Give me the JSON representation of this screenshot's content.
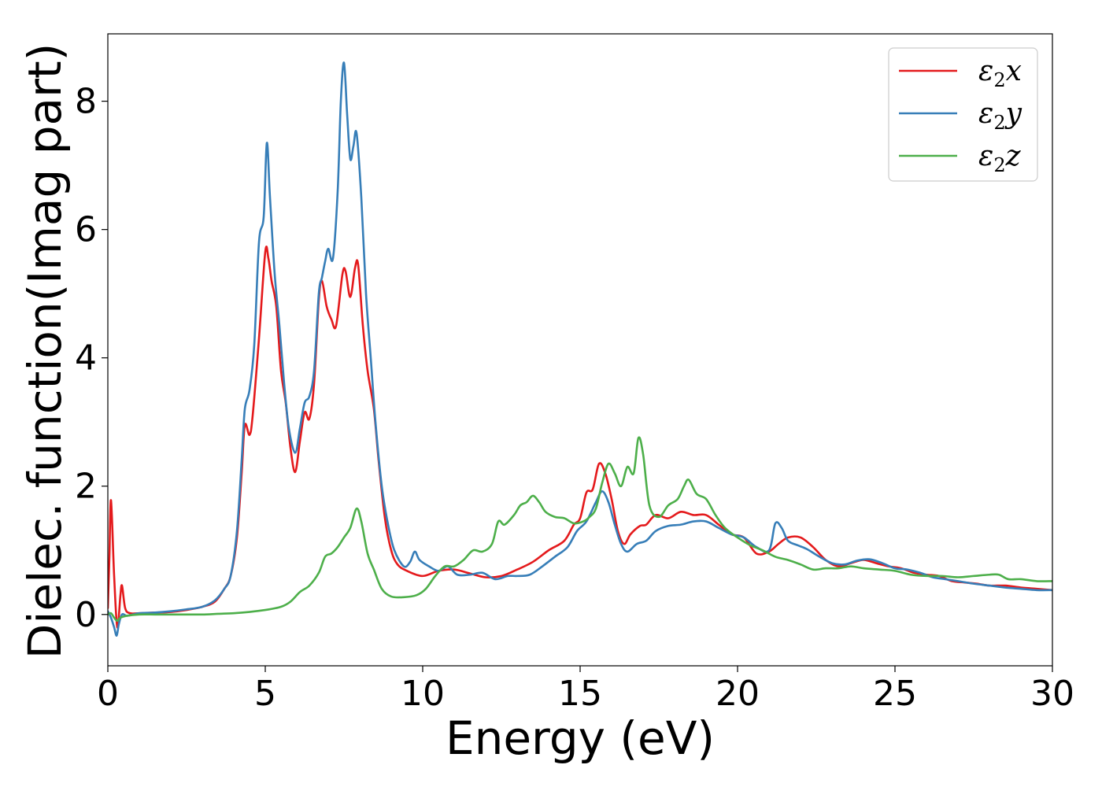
{
  "chart_data": {
    "type": "line",
    "xlabel": "Energy (eV)",
    "ylabel": "Dielec. function(Imag part)",
    "xlim": [
      0,
      30
    ],
    "ylim": [
      -0.8,
      9.05
    ],
    "x_ticks": [
      0,
      5,
      10,
      15,
      20,
      25,
      30
    ],
    "y_ticks": [
      0,
      2,
      4,
      6,
      8
    ],
    "grid": false,
    "legend_position": "top-right",
    "series": [
      {
        "name": "ε2x",
        "legend_base": "ε",
        "legend_sub": "2",
        "legend_suffix": "x",
        "color": "#e41a1c",
        "points": [
          [
            0.0,
            0.1
          ],
          [
            0.05,
            0.9
          ],
          [
            0.1,
            1.78
          ],
          [
            0.2,
            0.6
          ],
          [
            0.3,
            -0.2
          ],
          [
            0.4,
            0.3
          ],
          [
            0.45,
            0.45
          ],
          [
            0.55,
            0.1
          ],
          [
            0.7,
            0.02
          ],
          [
            1.0,
            0.02
          ],
          [
            1.5,
            0.03
          ],
          [
            2.0,
            0.04
          ],
          [
            2.5,
            0.07
          ],
          [
            3.0,
            0.12
          ],
          [
            3.4,
            0.2
          ],
          [
            3.7,
            0.4
          ],
          [
            3.9,
            0.6
          ],
          [
            4.1,
            1.2
          ],
          [
            4.25,
            2.2
          ],
          [
            4.35,
            2.95
          ],
          [
            4.5,
            2.8
          ],
          [
            4.6,
            3.1
          ],
          [
            4.8,
            4.3
          ],
          [
            5.0,
            5.65
          ],
          [
            5.1,
            5.55
          ],
          [
            5.2,
            5.2
          ],
          [
            5.35,
            4.8
          ],
          [
            5.5,
            3.8
          ],
          [
            5.65,
            3.3
          ],
          [
            5.8,
            2.6
          ],
          [
            5.95,
            2.22
          ],
          [
            6.1,
            2.7
          ],
          [
            6.25,
            3.15
          ],
          [
            6.4,
            3.05
          ],
          [
            6.55,
            3.6
          ],
          [
            6.7,
            4.9
          ],
          [
            6.8,
            5.2
          ],
          [
            6.95,
            4.8
          ],
          [
            7.1,
            4.6
          ],
          [
            7.25,
            4.5
          ],
          [
            7.45,
            5.3
          ],
          [
            7.55,
            5.35
          ],
          [
            7.7,
            4.95
          ],
          [
            7.85,
            5.4
          ],
          [
            7.95,
            5.45
          ],
          [
            8.1,
            4.5
          ],
          [
            8.25,
            3.8
          ],
          [
            8.45,
            3.2
          ],
          [
            8.6,
            2.4
          ],
          [
            8.8,
            1.5
          ],
          [
            9.0,
            1.0
          ],
          [
            9.2,
            0.78
          ],
          [
            9.5,
            0.68
          ],
          [
            10.0,
            0.6
          ],
          [
            10.5,
            0.68
          ],
          [
            11.0,
            0.7
          ],
          [
            11.5,
            0.64
          ],
          [
            12.0,
            0.58
          ],
          [
            12.5,
            0.6
          ],
          [
            13.0,
            0.7
          ],
          [
            13.5,
            0.82
          ],
          [
            14.0,
            1.0
          ],
          [
            14.5,
            1.15
          ],
          [
            14.8,
            1.4
          ],
          [
            15.0,
            1.5
          ],
          [
            15.2,
            1.9
          ],
          [
            15.4,
            1.95
          ],
          [
            15.6,
            2.35
          ],
          [
            15.8,
            2.2
          ],
          [
            16.0,
            1.8
          ],
          [
            16.2,
            1.3
          ],
          [
            16.4,
            1.1
          ],
          [
            16.6,
            1.25
          ],
          [
            16.9,
            1.38
          ],
          [
            17.1,
            1.4
          ],
          [
            17.4,
            1.55
          ],
          [
            17.8,
            1.5
          ],
          [
            18.2,
            1.6
          ],
          [
            18.6,
            1.55
          ],
          [
            19.0,
            1.55
          ],
          [
            19.4,
            1.4
          ],
          [
            19.8,
            1.25
          ],
          [
            20.2,
            1.2
          ],
          [
            20.6,
            0.95
          ],
          [
            21.0,
            0.98
          ],
          [
            21.3,
            1.1
          ],
          [
            21.6,
            1.2
          ],
          [
            22.0,
            1.2
          ],
          [
            22.4,
            1.05
          ],
          [
            22.8,
            0.85
          ],
          [
            23.2,
            0.75
          ],
          [
            23.6,
            0.8
          ],
          [
            24.0,
            0.85
          ],
          [
            24.4,
            0.8
          ],
          [
            24.8,
            0.75
          ],
          [
            25.2,
            0.72
          ],
          [
            25.6,
            0.65
          ],
          [
            26.0,
            0.62
          ],
          [
            26.4,
            0.6
          ],
          [
            26.8,
            0.52
          ],
          [
            27.2,
            0.5
          ],
          [
            27.6,
            0.48
          ],
          [
            28.0,
            0.45
          ],
          [
            28.5,
            0.45
          ],
          [
            29.0,
            0.42
          ],
          [
            29.5,
            0.4
          ],
          [
            30.0,
            0.38
          ]
        ]
      },
      {
        "name": "ε2y",
        "legend_base": "ε",
        "legend_sub": "2",
        "legend_suffix": "y",
        "color": "#377eb8",
        "points": [
          [
            0.0,
            0.05
          ],
          [
            0.1,
            -0.05
          ],
          [
            0.2,
            -0.2
          ],
          [
            0.28,
            -0.33
          ],
          [
            0.35,
            -0.15
          ],
          [
            0.45,
            0.0
          ],
          [
            0.6,
            -0.02
          ],
          [
            0.8,
            0.0
          ],
          [
            1.0,
            0.02
          ],
          [
            1.5,
            0.03
          ],
          [
            2.0,
            0.05
          ],
          [
            2.5,
            0.08
          ],
          [
            3.0,
            0.12
          ],
          [
            3.4,
            0.22
          ],
          [
            3.7,
            0.4
          ],
          [
            3.9,
            0.6
          ],
          [
            4.1,
            1.3
          ],
          [
            4.25,
            2.4
          ],
          [
            4.35,
            3.2
          ],
          [
            4.5,
            3.5
          ],
          [
            4.65,
            4.2
          ],
          [
            4.8,
            5.8
          ],
          [
            4.95,
            6.2
          ],
          [
            5.05,
            7.35
          ],
          [
            5.15,
            6.5
          ],
          [
            5.3,
            5.3
          ],
          [
            5.45,
            4.5
          ],
          [
            5.6,
            3.6
          ],
          [
            5.75,
            2.9
          ],
          [
            5.95,
            2.52
          ],
          [
            6.1,
            2.9
          ],
          [
            6.25,
            3.3
          ],
          [
            6.4,
            3.4
          ],
          [
            6.55,
            3.8
          ],
          [
            6.7,
            5.0
          ],
          [
            6.8,
            5.25
          ],
          [
            6.9,
            5.5
          ],
          [
            7.0,
            5.7
          ],
          [
            7.15,
            5.55
          ],
          [
            7.3,
            6.6
          ],
          [
            7.4,
            8.0
          ],
          [
            7.5,
            8.6
          ],
          [
            7.6,
            7.8
          ],
          [
            7.7,
            7.1
          ],
          [
            7.8,
            7.3
          ],
          [
            7.9,
            7.5
          ],
          [
            8.05,
            6.5
          ],
          [
            8.2,
            5.0
          ],
          [
            8.35,
            4.0
          ],
          [
            8.5,
            3.0
          ],
          [
            8.7,
            2.0
          ],
          [
            8.9,
            1.4
          ],
          [
            9.1,
            1.0
          ],
          [
            9.4,
            0.75
          ],
          [
            9.6,
            0.82
          ],
          [
            9.75,
            0.98
          ],
          [
            9.9,
            0.85
          ],
          [
            10.2,
            0.75
          ],
          [
            10.5,
            0.68
          ],
          [
            10.8,
            0.75
          ],
          [
            11.1,
            0.62
          ],
          [
            11.5,
            0.62
          ],
          [
            11.9,
            0.65
          ],
          [
            12.3,
            0.55
          ],
          [
            12.7,
            0.6
          ],
          [
            13.0,
            0.6
          ],
          [
            13.4,
            0.62
          ],
          [
            13.8,
            0.75
          ],
          [
            14.2,
            0.9
          ],
          [
            14.6,
            1.05
          ],
          [
            14.9,
            1.3
          ],
          [
            15.2,
            1.45
          ],
          [
            15.5,
            1.75
          ],
          [
            15.7,
            1.92
          ],
          [
            15.9,
            1.75
          ],
          [
            16.1,
            1.4
          ],
          [
            16.3,
            1.1
          ],
          [
            16.5,
            0.98
          ],
          [
            16.8,
            1.1
          ],
          [
            17.1,
            1.15
          ],
          [
            17.4,
            1.3
          ],
          [
            17.8,
            1.38
          ],
          [
            18.2,
            1.4
          ],
          [
            18.6,
            1.45
          ],
          [
            19.0,
            1.45
          ],
          [
            19.4,
            1.35
          ],
          [
            19.8,
            1.25
          ],
          [
            20.2,
            1.2
          ],
          [
            20.6,
            1.05
          ],
          [
            21.0,
            1.0
          ],
          [
            21.2,
            1.42
          ],
          [
            21.4,
            1.35
          ],
          [
            21.6,
            1.15
          ],
          [
            21.9,
            1.08
          ],
          [
            22.2,
            1.02
          ],
          [
            22.6,
            0.9
          ],
          [
            23.0,
            0.8
          ],
          [
            23.4,
            0.78
          ],
          [
            23.8,
            0.84
          ],
          [
            24.2,
            0.86
          ],
          [
            24.6,
            0.8
          ],
          [
            25.0,
            0.72
          ],
          [
            25.4,
            0.7
          ],
          [
            25.8,
            0.65
          ],
          [
            26.2,
            0.58
          ],
          [
            26.6,
            0.55
          ],
          [
            27.0,
            0.52
          ],
          [
            27.5,
            0.48
          ],
          [
            28.0,
            0.45
          ],
          [
            28.5,
            0.42
          ],
          [
            29.0,
            0.4
          ],
          [
            29.5,
            0.38
          ],
          [
            30.0,
            0.38
          ]
        ]
      },
      {
        "name": "ε2z",
        "legend_base": "ε",
        "legend_sub": "2",
        "legend_suffix": "z",
        "color": "#4daf4a",
        "points": [
          [
            0.0,
            0.0
          ],
          [
            0.1,
            0.02
          ],
          [
            0.2,
            -0.05
          ],
          [
            0.3,
            -0.1
          ],
          [
            0.4,
            -0.05
          ],
          [
            0.6,
            -0.02
          ],
          [
            1.0,
            0.0
          ],
          [
            1.5,
            0.0
          ],
          [
            2.0,
            0.0
          ],
          [
            2.5,
            0.0
          ],
          [
            3.0,
            0.0
          ],
          [
            3.5,
            0.01
          ],
          [
            4.0,
            0.02
          ],
          [
            4.5,
            0.04
          ],
          [
            5.0,
            0.07
          ],
          [
            5.5,
            0.12
          ],
          [
            5.8,
            0.2
          ],
          [
            6.1,
            0.35
          ],
          [
            6.4,
            0.45
          ],
          [
            6.7,
            0.65
          ],
          [
            6.9,
            0.9
          ],
          [
            7.1,
            0.95
          ],
          [
            7.3,
            1.05
          ],
          [
            7.5,
            1.2
          ],
          [
            7.7,
            1.35
          ],
          [
            7.9,
            1.65
          ],
          [
            8.05,
            1.45
          ],
          [
            8.25,
            0.95
          ],
          [
            8.45,
            0.7
          ],
          [
            8.7,
            0.4
          ],
          [
            9.0,
            0.28
          ],
          [
            9.4,
            0.27
          ],
          [
            9.8,
            0.3
          ],
          [
            10.1,
            0.4
          ],
          [
            10.4,
            0.6
          ],
          [
            10.7,
            0.75
          ],
          [
            11.0,
            0.75
          ],
          [
            11.3,
            0.85
          ],
          [
            11.6,
            1.0
          ],
          [
            11.9,
            0.98
          ],
          [
            12.2,
            1.1
          ],
          [
            12.4,
            1.45
          ],
          [
            12.6,
            1.4
          ],
          [
            12.9,
            1.55
          ],
          [
            13.1,
            1.7
          ],
          [
            13.3,
            1.75
          ],
          [
            13.5,
            1.85
          ],
          [
            13.7,
            1.75
          ],
          [
            13.9,
            1.6
          ],
          [
            14.2,
            1.52
          ],
          [
            14.5,
            1.5
          ],
          [
            14.8,
            1.42
          ],
          [
            15.1,
            1.45
          ],
          [
            15.3,
            1.52
          ],
          [
            15.5,
            1.65
          ],
          [
            15.7,
            2.05
          ],
          [
            15.9,
            2.35
          ],
          [
            16.1,
            2.2
          ],
          [
            16.3,
            2.0
          ],
          [
            16.5,
            2.3
          ],
          [
            16.7,
            2.2
          ],
          [
            16.85,
            2.75
          ],
          [
            17.0,
            2.5
          ],
          [
            17.2,
            1.7
          ],
          [
            17.5,
            1.52
          ],
          [
            17.8,
            1.7
          ],
          [
            18.1,
            1.8
          ],
          [
            18.3,
            2.0
          ],
          [
            18.45,
            2.1
          ],
          [
            18.7,
            1.88
          ],
          [
            19.0,
            1.8
          ],
          [
            19.3,
            1.55
          ],
          [
            19.6,
            1.35
          ],
          [
            20.0,
            1.2
          ],
          [
            20.4,
            1.08
          ],
          [
            20.8,
            1.0
          ],
          [
            21.2,
            0.9
          ],
          [
            21.6,
            0.85
          ],
          [
            22.0,
            0.78
          ],
          [
            22.4,
            0.7
          ],
          [
            22.8,
            0.72
          ],
          [
            23.2,
            0.72
          ],
          [
            23.6,
            0.75
          ],
          [
            24.0,
            0.72
          ],
          [
            24.5,
            0.7
          ],
          [
            25.0,
            0.68
          ],
          [
            25.5,
            0.62
          ],
          [
            26.0,
            0.6
          ],
          [
            26.5,
            0.6
          ],
          [
            27.0,
            0.58
          ],
          [
            27.5,
            0.6
          ],
          [
            28.0,
            0.62
          ],
          [
            28.3,
            0.62
          ],
          [
            28.6,
            0.55
          ],
          [
            29.0,
            0.55
          ],
          [
            29.5,
            0.52
          ],
          [
            30.0,
            0.52
          ]
        ]
      }
    ]
  }
}
